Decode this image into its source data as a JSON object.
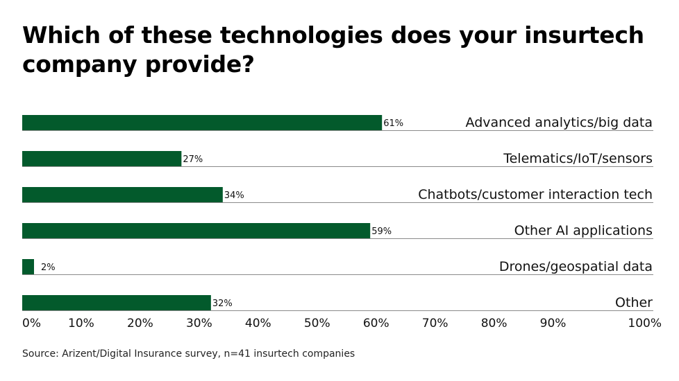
{
  "chart_data": {
    "type": "bar",
    "orientation": "horizontal",
    "title": "Which of these technologies does your insurtech company provide?",
    "categories": [
      "Advanced analytics/big data",
      "Telematics/IoT/sensors",
      "Chatbots/customer interaction tech",
      "Other AI applications",
      "Drones/geospatial data",
      "Other"
    ],
    "values": [
      61,
      27,
      34,
      59,
      2,
      32
    ],
    "value_labels": [
      "61%",
      "27%",
      "34%",
      "59%",
      "2%",
      "32%"
    ],
    "xlim": [
      0,
      100
    ],
    "x_ticks": [
      "0%",
      "10%",
      "20%",
      "30%",
      "40%",
      "50%",
      "60%",
      "70%",
      "80%",
      "90%",
      "100%"
    ],
    "grid": false,
    "legend": "none",
    "bar_color": "#035a2c",
    "source": "Source: Arizent/Digital Insurance survey, n=41 insurtech companies"
  }
}
